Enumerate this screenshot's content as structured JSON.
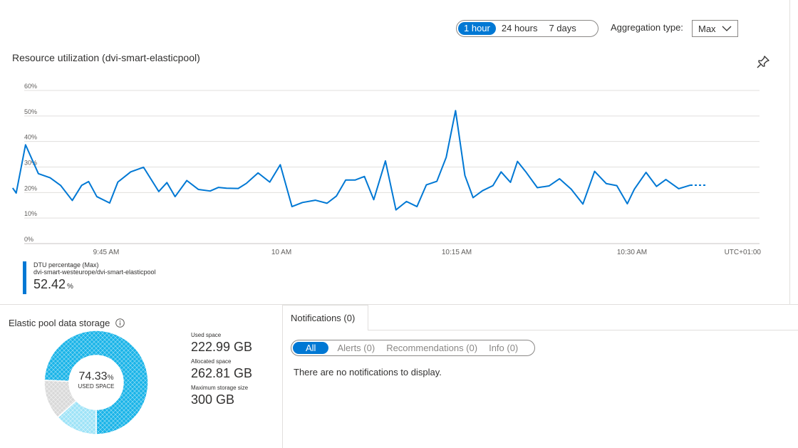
{
  "time_range": {
    "options": [
      "1 hour",
      "24 hours",
      "7 days"
    ],
    "selected": "1 hour"
  },
  "aggregation": {
    "label": "Aggregation type:",
    "value": "Max"
  },
  "chart_title": "Resource utilization (dvi-smart-elasticpool)",
  "pin_icon": "pin-icon",
  "chart_data": {
    "type": "line",
    "title": "Resource utilization (dvi-smart-elasticpool)",
    "y_ticks": [
      "60%",
      "50%",
      "40%",
      "30%",
      "20%",
      "10%",
      "0%"
    ],
    "ylim": [
      0,
      60
    ],
    "x_ticks": [
      "9:45 AM",
      "10 AM",
      "10:15 AM",
      "10:30 AM"
    ],
    "x_tick_minutes": [
      45,
      60,
      75,
      90
    ],
    "timezone": "UTC+01:00",
    "grid": true,
    "color": "#0078d4",
    "series": [
      {
        "name": "DTU percentage (Max)",
        "x": [
          37.0,
          37.3,
          38.1,
          39.2,
          40.2,
          41.1,
          42.1,
          42.9,
          43.5,
          44.2,
          45.3,
          46.0,
          47.1,
          48.2,
          49.5,
          50.2,
          50.9,
          51.9,
          52.9,
          53.9,
          54.6,
          55.3,
          56.3,
          57.0,
          58.0,
          59.0,
          59.9,
          60.9,
          61.8,
          62.9,
          63.9,
          64.7,
          65.5,
          66.3,
          67.1,
          67.9,
          68.9,
          69.8,
          70.7,
          71.6,
          72.4,
          73.3,
          74.1,
          74.9,
          75.7,
          76.4,
          77.2,
          78.1,
          78.8,
          79.6,
          80.2,
          80.9,
          81.9,
          82.9,
          83.8,
          84.8,
          85.8,
          86.8,
          87.8,
          88.7,
          89.6,
          90.2,
          91.2,
          92.1,
          92.9,
          94.0,
          95.0,
          95.8,
          96.4
        ],
        "values": [
          21.8,
          19.8,
          38.7,
          27.4,
          25.8,
          22.8,
          16.9,
          22.8,
          24.3,
          18.4,
          15.9,
          24.1,
          28.1,
          29.9,
          20.4,
          23.9,
          18.4,
          24.7,
          21.2,
          20.6,
          22.0,
          21.7,
          21.6,
          23.6,
          27.7,
          24.1,
          30.9,
          14.5,
          16.1,
          17.0,
          15.8,
          18.6,
          24.9,
          24.9,
          26.3,
          17.2,
          32.4,
          13.2,
          16.5,
          14.5,
          23.0,
          24.4,
          33.8,
          52.1,
          26.7,
          18.0,
          20.7,
          22.7,
          28.1,
          24.0,
          32.2,
          28.2,
          21.9,
          22.6,
          25.4,
          21.3,
          15.5,
          28.3,
          23.5,
          22.7,
          15.6,
          21.3,
          27.9,
          22.4,
          25.1,
          21.5,
          22.9,
          22.9,
          22.9
        ]
      }
    ],
    "dotted_tail_from_index": 66
  },
  "legend": {
    "metric": "DTU percentage (Max)",
    "resource": "dvi-smart-westeurope/dvi-smart-elasticpool",
    "value": "52.42",
    "unit": "%"
  },
  "storage": {
    "title": "Elastic pool data storage",
    "info_icon": "info-icon",
    "used_percent": "74.33",
    "percent_unit": "%",
    "used_label": "USED SPACE",
    "donut_fractions": {
      "used": 0.7433,
      "allocated_unused": 0.1327,
      "free": 0.124
    },
    "stats": [
      {
        "label": "Used space",
        "value": "222.99 GB"
      },
      {
        "label": "Allocated space",
        "value": "262.81 GB"
      },
      {
        "label": "Maximum storage size",
        "value": "300 GB"
      }
    ],
    "colors": {
      "used": "#1ab4e8",
      "allocated": "#9ee3f7",
      "free": "#d9d9d9"
    }
  },
  "notifications": {
    "tab_label": "Notifications (0)",
    "filters": [
      "All",
      "Alerts (0)",
      "Recommendations (0)",
      "Info (0)"
    ],
    "selected_filter": "All",
    "empty_message": "There are no notifications to display."
  }
}
